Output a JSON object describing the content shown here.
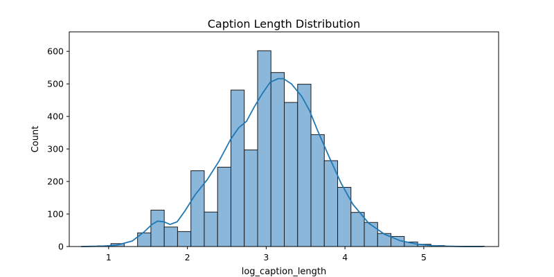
{
  "chart_data": {
    "type": "bar",
    "title": "Caption Length Distribution",
    "xlabel": "log_caption_length",
    "ylabel": "Count",
    "xlim": [
      0.5,
      5.95
    ],
    "ylim": [
      0,
      660
    ],
    "xticks": [
      1,
      2,
      3,
      4,
      5
    ],
    "yticks": [
      0,
      100,
      200,
      300,
      400,
      500,
      600
    ],
    "grid": false,
    "bins": {
      "start": 0.69,
      "width": 0.1693,
      "counts": [
        1,
        2,
        9,
        0,
        42,
        112,
        60,
        46,
        233,
        106,
        244,
        481,
        297,
        602,
        535,
        443,
        499,
        344,
        264,
        182,
        105,
        74,
        40,
        31,
        14,
        7,
        3,
        1,
        1,
        1
      ]
    },
    "kde": {
      "x": [
        0.65,
        0.9,
        1.1,
        1.3,
        1.45,
        1.55,
        1.62,
        1.7,
        1.78,
        1.87,
        1.97,
        2.1,
        2.25,
        2.4,
        2.55,
        2.65,
        2.75,
        2.85,
        2.95,
        3.05,
        3.15,
        3.22,
        3.32,
        3.45,
        3.55,
        3.65,
        3.8,
        3.95,
        4.1,
        4.3,
        4.5,
        4.7,
        4.9,
        5.1,
        5.3,
        5.5,
        5.75
      ],
      "y": [
        0,
        1,
        4,
        17,
        45,
        68,
        78,
        76,
        68,
        76,
        110,
        160,
        205,
        262,
        330,
        365,
        385,
        430,
        470,
        505,
        516,
        516,
        500,
        462,
        418,
        358,
        275,
        195,
        130,
        72,
        38,
        18,
        8,
        3,
        1,
        0,
        0
      ]
    }
  }
}
